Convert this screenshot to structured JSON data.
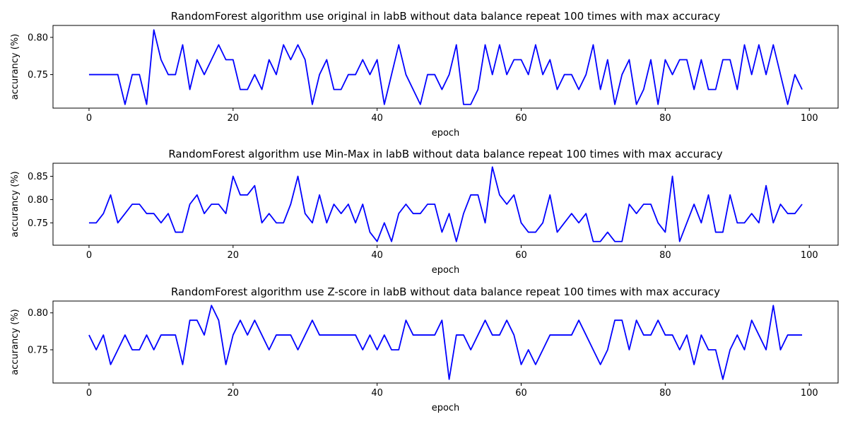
{
  "chart_data": [
    {
      "type": "line",
      "title": "RandomForest algorithm use original in labB without data balance repeat 100 times with max accuracy",
      "xlabel": "epoch",
      "ylabel": "accurancy (%)",
      "xlim": [
        -5,
        104
      ],
      "ylim": [
        0.705,
        0.816
      ],
      "xticks": [
        0,
        20,
        40,
        60,
        80,
        100
      ],
      "yticks": [
        0.75,
        0.8
      ],
      "ytick_labels": [
        "0.75",
        "0.80"
      ],
      "grid": false,
      "series": [
        {
          "color": "#0000ff",
          "x": [
            0,
            1,
            2,
            3,
            4,
            5,
            6,
            7,
            8,
            9,
            10,
            11,
            12,
            13,
            14,
            15,
            16,
            17,
            18,
            19,
            20,
            21,
            22,
            23,
            24,
            25,
            26,
            27,
            28,
            29,
            30,
            31,
            32,
            33,
            34,
            35,
            36,
            37,
            38,
            39,
            40,
            41,
            42,
            43,
            44,
            45,
            46,
            47,
            48,
            49,
            50,
            51,
            52,
            53,
            54,
            55,
            56,
            57,
            58,
            59,
            60,
            61,
            62,
            63,
            64,
            65,
            66,
            67,
            68,
            69,
            70,
            71,
            72,
            73,
            74,
            75,
            76,
            77,
            78,
            79,
            80,
            81,
            82,
            83,
            84,
            85,
            86,
            87,
            88,
            89,
            90,
            91,
            92,
            93,
            94,
            95,
            96,
            97,
            98,
            99
          ],
          "values": [
            0.75,
            0.75,
            0.75,
            0.75,
            0.75,
            0.71,
            0.75,
            0.75,
            0.71,
            0.81,
            0.77,
            0.75,
            0.75,
            0.79,
            0.73,
            0.77,
            0.75,
            0.77,
            0.79,
            0.77,
            0.77,
            0.73,
            0.73,
            0.75,
            0.73,
            0.77,
            0.75,
            0.79,
            0.77,
            0.79,
            0.77,
            0.71,
            0.75,
            0.77,
            0.73,
            0.73,
            0.75,
            0.75,
            0.77,
            0.75,
            0.77,
            0.71,
            0.75,
            0.79,
            0.75,
            0.73,
            0.71,
            0.75,
            0.75,
            0.73,
            0.75,
            0.79,
            0.71,
            0.71,
            0.73,
            0.79,
            0.75,
            0.79,
            0.75,
            0.77,
            0.77,
            0.75,
            0.79,
            0.75,
            0.77,
            0.73,
            0.75,
            0.75,
            0.73,
            0.75,
            0.79,
            0.73,
            0.77,
            0.71,
            0.75,
            0.77,
            0.71,
            0.73,
            0.77,
            0.71,
            0.77,
            0.75,
            0.77,
            0.77,
            0.73,
            0.77,
            0.73,
            0.73,
            0.77,
            0.77,
            0.73,
            0.79,
            0.75,
            0.79,
            0.75,
            0.79,
            0.75,
            0.71,
            0.75,
            0.73
          ]
        }
      ]
    },
    {
      "type": "line",
      "title": "RandomForest algorithm use Min-Max in labB without data balance repeat 100 times with max accuracy",
      "xlabel": "epoch",
      "ylabel": "accurancy (%)",
      "xlim": [
        -5,
        104
      ],
      "ylim": [
        0.702,
        0.878
      ],
      "xticks": [
        0,
        20,
        40,
        60,
        80,
        100
      ],
      "yticks": [
        0.75,
        0.8,
        0.85
      ],
      "ytick_labels": [
        "0.75",
        "0.80",
        "0.85"
      ],
      "grid": false,
      "series": [
        {
          "color": "#0000ff",
          "x": [
            0,
            1,
            2,
            3,
            4,
            5,
            6,
            7,
            8,
            9,
            10,
            11,
            12,
            13,
            14,
            15,
            16,
            17,
            18,
            19,
            20,
            21,
            22,
            23,
            24,
            25,
            26,
            27,
            28,
            29,
            30,
            31,
            32,
            33,
            34,
            35,
            36,
            37,
            38,
            39,
            40,
            41,
            42,
            43,
            44,
            45,
            46,
            47,
            48,
            49,
            50,
            51,
            52,
            53,
            54,
            55,
            56,
            57,
            58,
            59,
            60,
            61,
            62,
            63,
            64,
            65,
            66,
            67,
            68,
            69,
            70,
            71,
            72,
            73,
            74,
            75,
            76,
            77,
            78,
            79,
            80,
            81,
            82,
            83,
            84,
            85,
            86,
            87,
            88,
            89,
            90,
            91,
            92,
            93,
            94,
            95,
            96,
            97,
            98,
            99
          ],
          "values": [
            0.75,
            0.75,
            0.77,
            0.81,
            0.75,
            0.77,
            0.79,
            0.79,
            0.77,
            0.77,
            0.75,
            0.77,
            0.73,
            0.73,
            0.79,
            0.81,
            0.77,
            0.79,
            0.79,
            0.77,
            0.85,
            0.81,
            0.81,
            0.83,
            0.75,
            0.77,
            0.75,
            0.75,
            0.79,
            0.85,
            0.77,
            0.75,
            0.81,
            0.75,
            0.79,
            0.77,
            0.79,
            0.75,
            0.79,
            0.73,
            0.71,
            0.75,
            0.71,
            0.77,
            0.79,
            0.77,
            0.77,
            0.79,
            0.79,
            0.73,
            0.77,
            0.71,
            0.77,
            0.81,
            0.81,
            0.75,
            0.87,
            0.81,
            0.79,
            0.81,
            0.75,
            0.73,
            0.73,
            0.75,
            0.81,
            0.73,
            0.75,
            0.77,
            0.75,
            0.77,
            0.71,
            0.71,
            0.73,
            0.71,
            0.71,
            0.79,
            0.77,
            0.79,
            0.79,
            0.75,
            0.73,
            0.85,
            0.71,
            0.75,
            0.79,
            0.75,
            0.81,
            0.73,
            0.73,
            0.81,
            0.75,
            0.75,
            0.77,
            0.75,
            0.83,
            0.75,
            0.79,
            0.77,
            0.77,
            0.79
          ]
        }
      ]
    },
    {
      "type": "line",
      "title": "RandomForest algorithm use Z-score in labB without data balance repeat 100 times with max accuracy",
      "xlabel": "epoch",
      "ylabel": "accurancy (%)",
      "xlim": [
        -5,
        104
      ],
      "ylim": [
        0.705,
        0.816
      ],
      "xticks": [
        0,
        20,
        40,
        60,
        80,
        100
      ],
      "yticks": [
        0.75,
        0.8
      ],
      "ytick_labels": [
        "0.75",
        "0.80"
      ],
      "grid": false,
      "series": [
        {
          "color": "#0000ff",
          "x": [
            0,
            1,
            2,
            3,
            4,
            5,
            6,
            7,
            8,
            9,
            10,
            11,
            12,
            13,
            14,
            15,
            16,
            17,
            18,
            19,
            20,
            21,
            22,
            23,
            24,
            25,
            26,
            27,
            28,
            29,
            30,
            31,
            32,
            33,
            34,
            35,
            36,
            37,
            38,
            39,
            40,
            41,
            42,
            43,
            44,
            45,
            46,
            47,
            48,
            49,
            50,
            51,
            52,
            53,
            54,
            55,
            56,
            57,
            58,
            59,
            60,
            61,
            62,
            63,
            64,
            65,
            66,
            67,
            68,
            69,
            70,
            71,
            72,
            73,
            74,
            75,
            76,
            77,
            78,
            79,
            80,
            81,
            82,
            83,
            84,
            85,
            86,
            87,
            88,
            89,
            90,
            91,
            92,
            93,
            94,
            95,
            96,
            97,
            98,
            99
          ],
          "values": [
            0.77,
            0.75,
            0.77,
            0.73,
            0.75,
            0.77,
            0.75,
            0.75,
            0.77,
            0.75,
            0.77,
            0.77,
            0.77,
            0.73,
            0.79,
            0.79,
            0.77,
            0.81,
            0.79,
            0.73,
            0.77,
            0.79,
            0.77,
            0.79,
            0.77,
            0.75,
            0.77,
            0.77,
            0.77,
            0.75,
            0.77,
            0.79,
            0.77,
            0.77,
            0.77,
            0.77,
            0.77,
            0.77,
            0.75,
            0.77,
            0.75,
            0.77,
            0.75,
            0.75,
            0.79,
            0.77,
            0.77,
            0.77,
            0.77,
            0.79,
            0.71,
            0.77,
            0.77,
            0.75,
            0.77,
            0.79,
            0.77,
            0.77,
            0.79,
            0.77,
            0.73,
            0.75,
            0.73,
            0.75,
            0.77,
            0.77,
            0.77,
            0.77,
            0.79,
            0.77,
            0.75,
            0.73,
            0.75,
            0.79,
            0.79,
            0.75,
            0.79,
            0.77,
            0.77,
            0.79,
            0.77,
            0.77,
            0.75,
            0.77,
            0.73,
            0.77,
            0.75,
            0.75,
            0.71,
            0.75,
            0.77,
            0.75,
            0.79,
            0.77,
            0.75,
            0.81,
            0.75,
            0.77,
            0.77,
            0.77
          ]
        }
      ]
    }
  ]
}
